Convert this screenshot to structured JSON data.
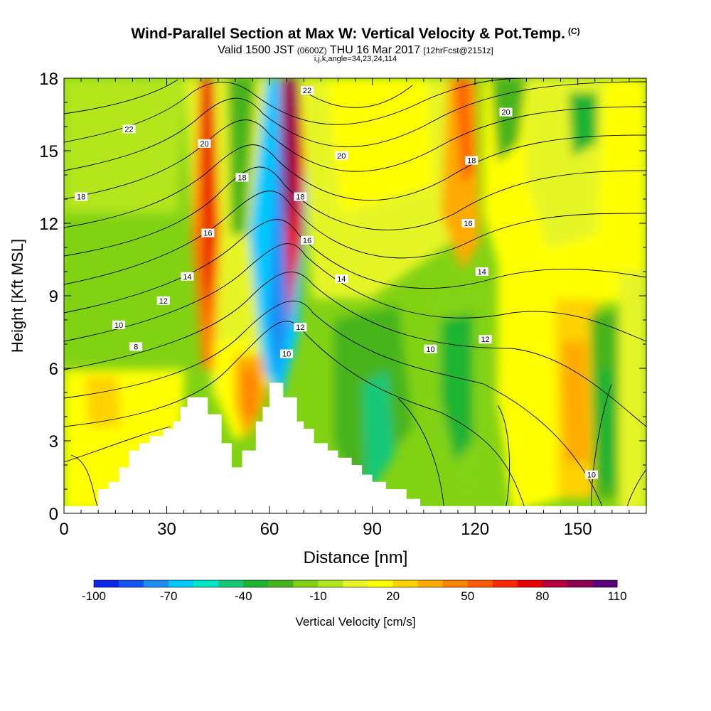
{
  "title": {
    "main": "Wind-Parallel Section at Max W: Vertical Velocity & Pot.Temp.",
    "main_suffix": "(C)",
    "valid_a": "Valid 1500 JST",
    "valid_b": "(0600Z)",
    "valid_c": "THU 16 Mar 2017",
    "valid_d": "[12hrFcst@2151z]",
    "grid": "i,j,k,angle=34,23,24,114"
  },
  "chart_data": {
    "type": "heatmap",
    "xlabel": "Distance [nm]",
    "ylabel": "Height [Kft MSL]",
    "xlim": [
      0,
      170
    ],
    "ylim": [
      0,
      18
    ],
    "x_ticks": [
      0,
      30,
      60,
      90,
      120,
      150
    ],
    "y_ticks": [
      0,
      3,
      6,
      9,
      12,
      15,
      18
    ],
    "colorbar": {
      "label": "Vertical Velocity [cm/s]",
      "tick_labels": [
        "-100",
        "-70",
        "-40",
        "-10",
        "20",
        "50",
        "80",
        "110"
      ],
      "tick_values": [
        -100,
        -70,
        -40,
        -10,
        20,
        50,
        80,
        110
      ],
      "colors": [
        "#0a28e6",
        "#1455f0",
        "#1e8cf5",
        "#00c8ff",
        "#00e6c8",
        "#14c878",
        "#1eb432",
        "#46b41e",
        "#82d214",
        "#b4e61e",
        "#e6f528",
        "#ffff00",
        "#ffd200",
        "#ffaa00",
        "#ff8200",
        "#ff5a00",
        "#ff2800",
        "#e60000",
        "#b4003c",
        "#8c0050",
        "#5a0078"
      ]
    },
    "contour_labels": [
      {
        "x": 5,
        "y": 13.1,
        "text": "18"
      },
      {
        "x": 16,
        "y": 7.8,
        "text": "10"
      },
      {
        "x": 19,
        "y": 15.9,
        "text": "22"
      },
      {
        "x": 21,
        "y": 6.9,
        "text": "8"
      },
      {
        "x": 29,
        "y": 8.8,
        "text": "12"
      },
      {
        "x": 36,
        "y": 9.8,
        "text": "14"
      },
      {
        "x": 42,
        "y": 11.6,
        "text": "16"
      },
      {
        "x": 41,
        "y": 15.3,
        "text": "20"
      },
      {
        "x": 52,
        "y": 13.9,
        "text": "18"
      },
      {
        "x": 65,
        "y": 6.6,
        "text": "10"
      },
      {
        "x": 69,
        "y": 7.7,
        "text": "12"
      },
      {
        "x": 69,
        "y": 13.1,
        "text": "18"
      },
      {
        "x": 71,
        "y": 11.3,
        "text": "16"
      },
      {
        "x": 71,
        "y": 17.5,
        "text": "22"
      },
      {
        "x": 81,
        "y": 9.7,
        "text": "14"
      },
      {
        "x": 81,
        "y": 14.8,
        "text": "20"
      },
      {
        "x": 107,
        "y": 6.8,
        "text": "10"
      },
      {
        "x": 119,
        "y": 14.6,
        "text": "18"
      },
      {
        "x": 118,
        "y": 12.0,
        "text": "16"
      },
      {
        "x": 122,
        "y": 10.0,
        "text": "14"
      },
      {
        "x": 123,
        "y": 7.2,
        "text": "12"
      },
      {
        "x": 129,
        "y": 16.6,
        "text": "20"
      },
      {
        "x": 154,
        "y": 1.6,
        "text": "10"
      }
    ],
    "terrain": [
      [
        0,
        0.3
      ],
      [
        9,
        0.3
      ],
      [
        10,
        1.0
      ],
      [
        13,
        1.3
      ],
      [
        16,
        1.9
      ],
      [
        19,
        2.6
      ],
      [
        22,
        2.9
      ],
      [
        25,
        3.2
      ],
      [
        29,
        3.5
      ],
      [
        32,
        3.8
      ],
      [
        34,
        4.4
      ],
      [
        36,
        4.8
      ],
      [
        39,
        4.8
      ],
      [
        42,
        4.1
      ],
      [
        45,
        4.1
      ],
      [
        46,
        2.9
      ],
      [
        48,
        2.9
      ],
      [
        49,
        1.9
      ],
      [
        51,
        1.9
      ],
      [
        52,
        2.6
      ],
      [
        55,
        2.6
      ],
      [
        56,
        3.8
      ],
      [
        58,
        4.4
      ],
      [
        60,
        5.4
      ],
      [
        64,
        5.4
      ],
      [
        64,
        4.8
      ],
      [
        67,
        4.8
      ],
      [
        68,
        3.8
      ],
      [
        70,
        3.5
      ],
      [
        73,
        2.9
      ],
      [
        77,
        2.6
      ],
      [
        80,
        2.3
      ],
      [
        84,
        2.0
      ],
      [
        87,
        1.6
      ],
      [
        90,
        1.3
      ],
      [
        94,
        1.0
      ],
      [
        97,
        1.0
      ],
      [
        100,
        0.6
      ],
      [
        103,
        0.6
      ],
      [
        104,
        0.3
      ],
      [
        170,
        0.3
      ]
    ]
  }
}
